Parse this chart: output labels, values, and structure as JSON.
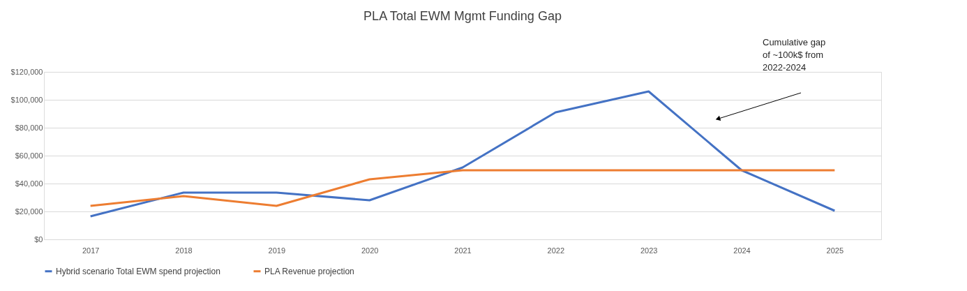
{
  "chart_data": {
    "type": "line",
    "title": "PLA Total EWM Mgmt Funding Gap",
    "categories": [
      "2017",
      "2018",
      "2019",
      "2020",
      "2021",
      "2022",
      "2023",
      "2024",
      "2025"
    ],
    "series": [
      {
        "name": "Hybrid scenario Total EWM spend projection",
        "color": "#4472c4",
        "values": [
          16500,
          33500,
          33500,
          28000,
          51500,
          91000,
          106000,
          49500,
          20500
        ]
      },
      {
        "name": "PLA Revenue projection",
        "color": "#ed7d31",
        "values": [
          24000,
          31000,
          24000,
          43000,
          49500,
          49500,
          49500,
          49500,
          49500
        ]
      }
    ],
    "ylim": [
      0,
      120000
    ],
    "yticks": [
      {
        "value": 0,
        "label": "$0"
      },
      {
        "value": 20000,
        "label": "$20,000"
      },
      {
        "value": 40000,
        "label": "$40,000"
      },
      {
        "value": 60000,
        "label": "$60,000"
      },
      {
        "value": 80000,
        "label": "$80,000"
      },
      {
        "value": 100000,
        "label": "$100,000"
      },
      {
        "value": 120000,
        "label": "$120,000"
      }
    ],
    "annotations": [
      "Cumulative gap\nof ~100k$ from\n2022-2024"
    ],
    "grid": "y",
    "legend": "bottom",
    "marker": "none",
    "line_style": "solid"
  }
}
